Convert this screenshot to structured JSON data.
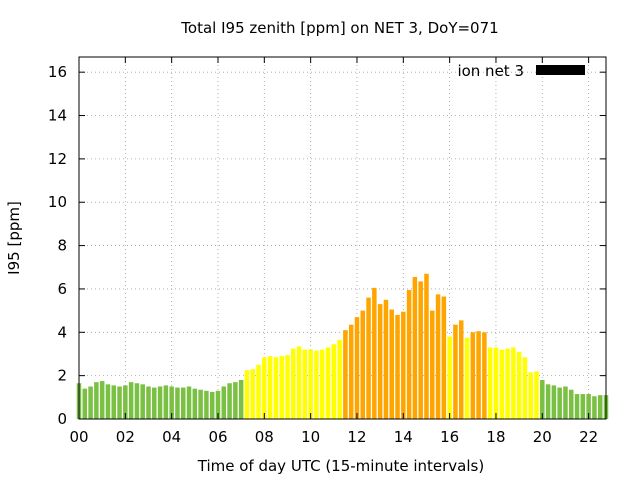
{
  "chart_data": {
    "type": "bar",
    "title": "Total I95 zenith [ppm] on NET 3, DoY=071",
    "xlabel": "Time of day UTC (15-minute intervals)",
    "ylabel": "I95 [ppm]",
    "xlim": [
      0,
      22.75
    ],
    "ylim": [
      0,
      16.7
    ],
    "x_tick_values": [
      0,
      2,
      4,
      6,
      8,
      10,
      12,
      14,
      16,
      18,
      20,
      22
    ],
    "x_tick_labels": [
      "00",
      "02",
      "04",
      "06",
      "08",
      "10",
      "12",
      "14",
      "16",
      "18",
      "20",
      "22"
    ],
    "y_tick_values": [
      0,
      2,
      4,
      6,
      8,
      10,
      12,
      14,
      16
    ],
    "y_tick_labels": [
      "0",
      "2",
      "4",
      "6",
      "8",
      "10",
      "12",
      "14",
      "16"
    ],
    "grid": true,
    "legend": {
      "position": "top-right",
      "label": "ion net 3",
      "color": "#000000"
    },
    "bar_interval_hours": 0.25,
    "start_hour": 0,
    "colors": {
      "green": "#7ac143",
      "yellow": "#ffff00",
      "orange": "#ffa500"
    },
    "values": [
      1.65,
      1.4,
      1.5,
      1.7,
      1.75,
      1.6,
      1.55,
      1.5,
      1.55,
      1.7,
      1.65,
      1.6,
      1.5,
      1.45,
      1.5,
      1.55,
      1.5,
      1.45,
      1.45,
      1.5,
      1.4,
      1.35,
      1.3,
      1.25,
      1.3,
      1.5,
      1.65,
      1.7,
      1.8,
      2.25,
      2.3,
      2.5,
      2.85,
      2.9,
      2.85,
      2.9,
      2.95,
      3.25,
      3.35,
      3.2,
      3.2,
      3.15,
      3.2,
      3.3,
      3.45,
      3.65,
      4.1,
      4.35,
      4.7,
      5.0,
      5.6,
      6.05,
      5.3,
      5.5,
      5.05,
      4.8,
      4.95,
      5.95,
      6.55,
      6.35,
      6.7,
      5.0,
      5.75,
      5.65,
      3.8,
      4.35,
      4.55,
      3.75,
      4.0,
      4.05,
      4.0,
      3.3,
      3.3,
      3.2,
      3.25,
      3.3,
      3.1,
      2.85,
      2.15,
      2.2,
      1.8,
      1.6,
      1.55,
      1.45,
      1.5,
      1.35,
      1.15,
      1.15,
      1.15,
      1.05,
      1.1,
      1.1
    ],
    "bar_colors": [
      "green",
      "green",
      "green",
      "green",
      "green",
      "green",
      "green",
      "green",
      "green",
      "green",
      "green",
      "green",
      "green",
      "green",
      "green",
      "green",
      "green",
      "green",
      "green",
      "green",
      "green",
      "green",
      "green",
      "green",
      "green",
      "green",
      "green",
      "green",
      "green",
      "yellow",
      "yellow",
      "yellow",
      "yellow",
      "yellow",
      "yellow",
      "yellow",
      "yellow",
      "yellow",
      "yellow",
      "yellow",
      "yellow",
      "yellow",
      "yellow",
      "yellow",
      "yellow",
      "yellow",
      "orange",
      "orange",
      "orange",
      "orange",
      "orange",
      "orange",
      "orange",
      "orange",
      "orange",
      "orange",
      "orange",
      "orange",
      "orange",
      "orange",
      "orange",
      "orange",
      "orange",
      "orange",
      "yellow",
      "orange",
      "orange",
      "yellow",
      "orange",
      "orange",
      "orange",
      "yellow",
      "yellow",
      "yellow",
      "yellow",
      "yellow",
      "yellow",
      "yellow",
      "yellow",
      "yellow",
      "green",
      "green",
      "green",
      "green",
      "green",
      "green",
      "green",
      "green",
      "green",
      "green",
      "green",
      "green"
    ]
  }
}
